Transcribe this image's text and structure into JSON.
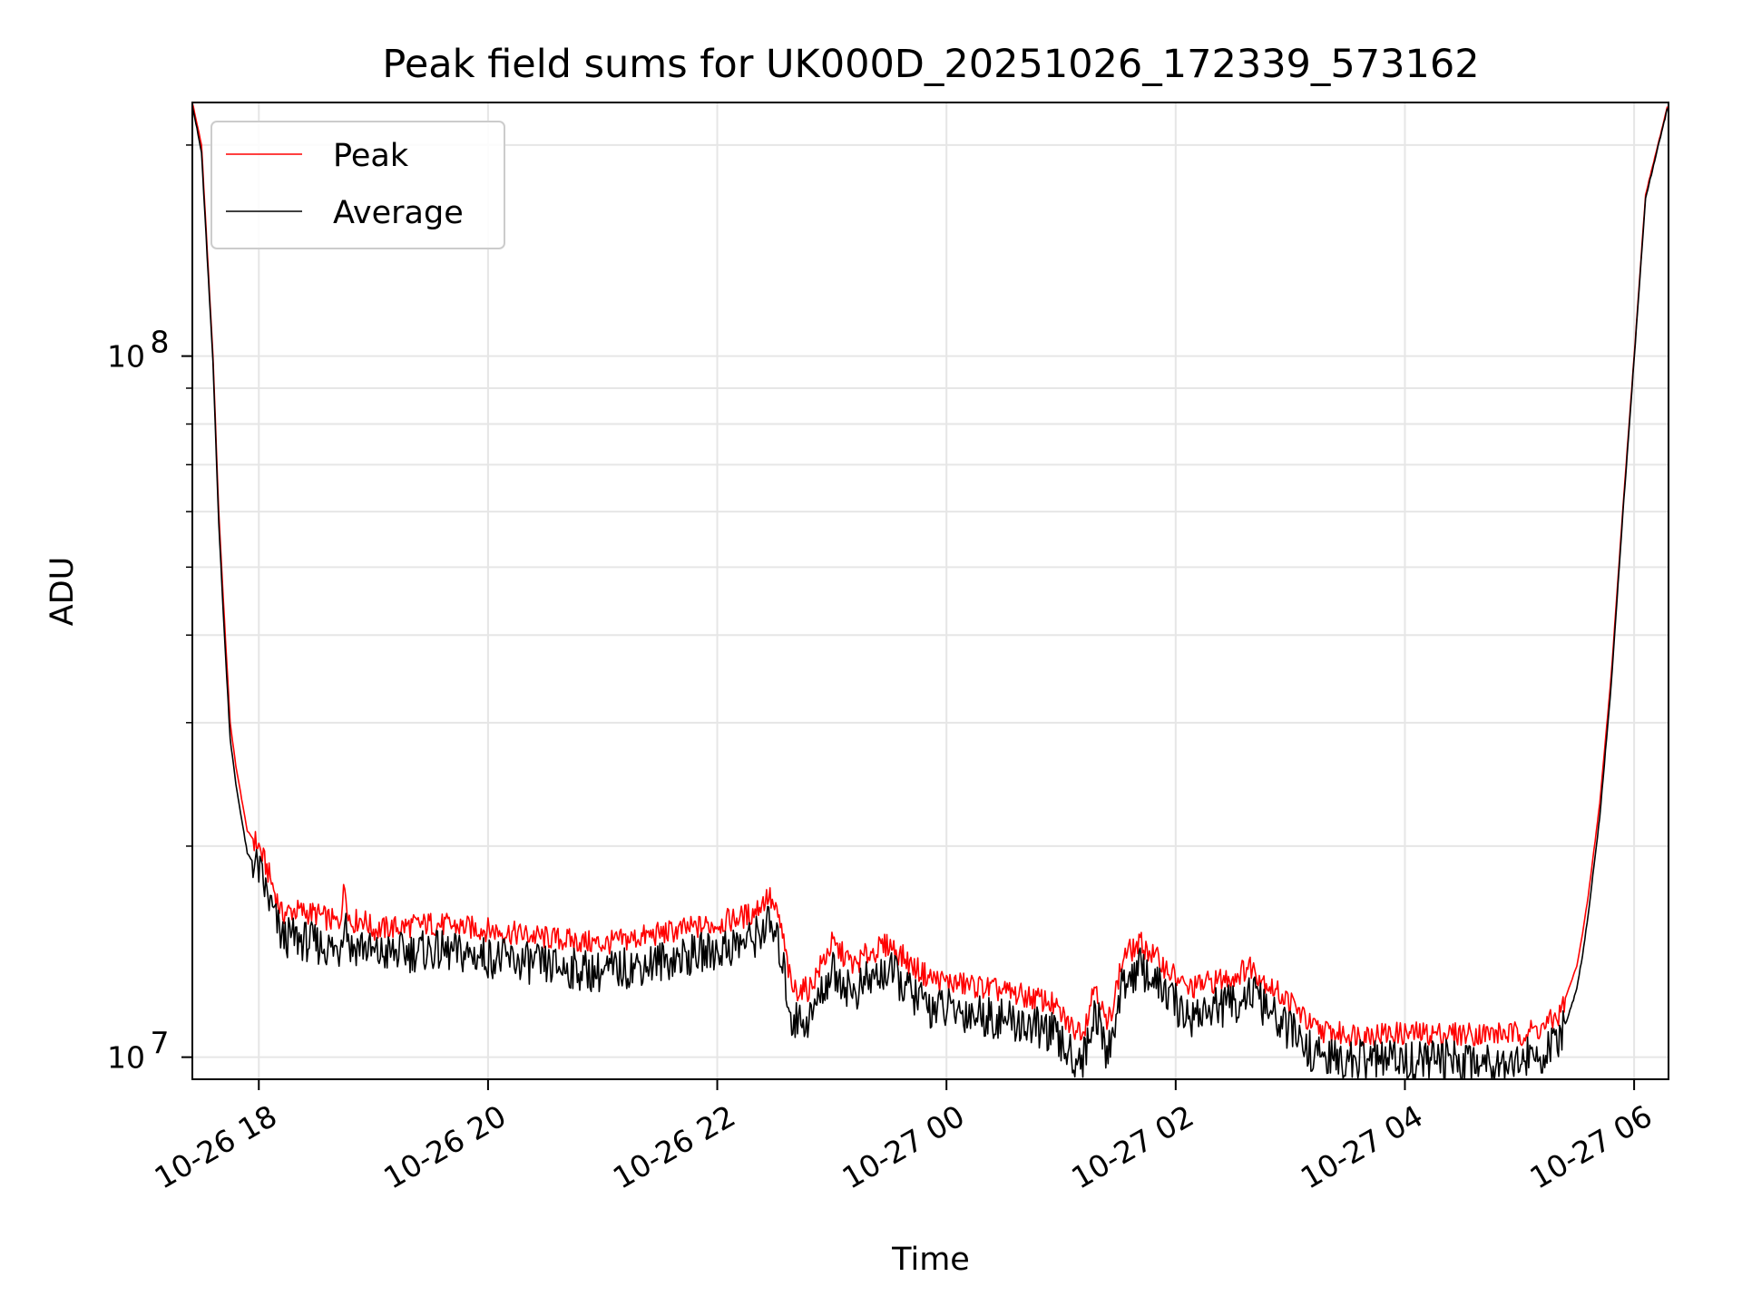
{
  "chart_data": {
    "type": "line",
    "title": "Peak field sums for UK000D_20251026_172339_573162",
    "xlabel": "Time",
    "ylabel": "ADU",
    "yscale": "log",
    "xlim_hours": [
      17.42,
      30.3
    ],
    "ylim": [
      9300000,
      230000000
    ],
    "grid": true,
    "legend_position": "upper-left",
    "x_ticks": [
      {
        "hour": 18,
        "label": "10-26 18"
      },
      {
        "hour": 20,
        "label": "10-26 20"
      },
      {
        "hour": 22,
        "label": "10-26 22"
      },
      {
        "hour": 24,
        "label": "10-27 00"
      },
      {
        "hour": 26,
        "label": "10-27 02"
      },
      {
        "hour": 28,
        "label": "10-27 04"
      },
      {
        "hour": 30,
        "label": "10-27 06"
      }
    ],
    "y_major_ticks": [
      {
        "value": 10000000,
        "base": "10",
        "exp": "7"
      },
      {
        "value": 100000000,
        "base": "10",
        "exp": "8"
      }
    ],
    "y_minor_ticks": [
      20000000,
      30000000,
      40000000,
      50000000,
      60000000,
      70000000,
      80000000,
      90000000,
      200000000
    ],
    "series": [
      {
        "name": "Peak",
        "color": "#ff0000",
        "x_hours": [
          17.42,
          17.5,
          17.6,
          17.65,
          17.7,
          17.75,
          17.8,
          17.9,
          18.0,
          18.1,
          18.2,
          18.3,
          18.5,
          18.7,
          18.75,
          18.8,
          18.9,
          19.0,
          19.5,
          20.0,
          20.5,
          21.0,
          21.5,
          22.0,
          22.3,
          22.45,
          22.55,
          22.65,
          22.8,
          23.0,
          23.2,
          23.3,
          23.5,
          23.7,
          23.85,
          24.0,
          24.3,
          24.6,
          24.9,
          25.1,
          25.2,
          25.3,
          25.4,
          25.55,
          25.7,
          25.9,
          26.1,
          26.3,
          26.5,
          26.65,
          26.85,
          27.0,
          27.2,
          27.4,
          27.6,
          28.0,
          28.5,
          29.0,
          29.2,
          29.35,
          29.5,
          29.55,
          29.6,
          29.7,
          29.8,
          29.9,
          30.0,
          30.1,
          30.3
        ],
        "values": [
          230000000,
          200000000,
          100000000,
          60000000,
          42000000,
          30000000,
          26000000,
          21000000,
          20000000,
          18000000,
          16000000,
          16200000,
          16000000,
          15500000,
          17500000,
          15500000,
          15800000,
          15200000,
          15500000,
          15200000,
          14800000,
          14500000,
          15000000,
          15500000,
          16000000,
          17000000,
          15500000,
          12500000,
          12500000,
          14500000,
          13500000,
          14000000,
          14500000,
          13500000,
          13000000,
          12800000,
          12600000,
          12300000,
          12000000,
          11000000,
          11000000,
          12800000,
          11000000,
          14000000,
          14500000,
          13500000,
          12500000,
          12800000,
          13000000,
          13500000,
          12500000,
          12000000,
          11000000,
          10800000,
          10800000,
          10800000,
          10800000,
          10800000,
          11000000,
          11500000,
          13500000,
          15000000,
          17000000,
          23000000,
          35000000,
          60000000,
          100000000,
          170000000,
          230000000
        ]
      },
      {
        "name": "Average",
        "color": "#000000",
        "x_hours": [
          17.42,
          17.5,
          17.6,
          17.65,
          17.7,
          17.75,
          17.8,
          17.9,
          18.0,
          18.1,
          18.2,
          18.3,
          18.5,
          18.7,
          18.75,
          18.8,
          18.9,
          19.0,
          19.5,
          20.0,
          20.5,
          21.0,
          21.5,
          22.0,
          22.3,
          22.45,
          22.55,
          22.65,
          22.8,
          23.0,
          23.2,
          23.3,
          23.5,
          23.7,
          23.85,
          24.0,
          24.3,
          24.6,
          24.9,
          25.1,
          25.2,
          25.3,
          25.4,
          25.55,
          25.7,
          25.9,
          26.1,
          26.3,
          26.5,
          26.65,
          26.85,
          27.0,
          27.2,
          27.4,
          27.6,
          28.0,
          28.5,
          29.0,
          29.2,
          29.35,
          29.5,
          29.55,
          29.6,
          29.7,
          29.8,
          29.9,
          30.0,
          30.1,
          30.3
        ],
        "values": [
          228000000,
          195000000,
          98000000,
          58000000,
          40000000,
          28500000,
          24500000,
          19500000,
          18500000,
          16500000,
          14800000,
          14800000,
          14500000,
          14200000,
          16000000,
          14300000,
          14500000,
          14000000,
          14200000,
          13900000,
          13500000,
          13200000,
          13700000,
          14200000,
          14700000,
          15500000,
          14200000,
          11300000,
          11300000,
          13300000,
          12300000,
          12800000,
          13300000,
          12300000,
          11800000,
          11700000,
          11500000,
          11200000,
          10900000,
          10000000,
          10000000,
          11700000,
          10000000,
          12900000,
          13400000,
          12400000,
          11400000,
          11700000,
          11900000,
          12400000,
          11400000,
          10900000,
          10100000,
          9900000,
          9900000,
          9900000,
          9900000,
          9900000,
          10100000,
          10500000,
          12500000,
          14000000,
          16000000,
          22000000,
          34000000,
          59000000,
          99000000,
          168000000,
          229000000
        ]
      }
    ]
  }
}
